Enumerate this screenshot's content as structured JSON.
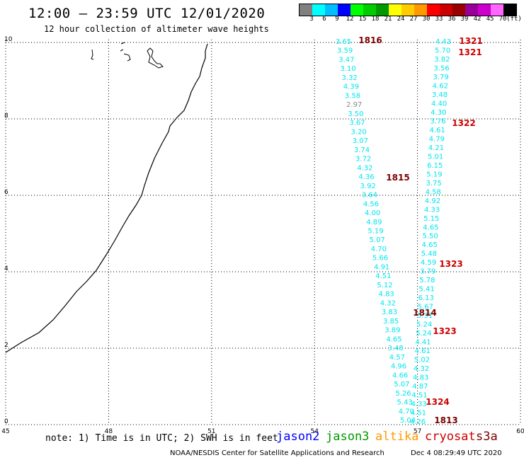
{
  "header": {
    "title": "12:00 — 23:59 UTC 12/01/2020",
    "subtitle": "12 hour collection of altimeter wave heights"
  },
  "legend": {
    "unit": "(ft)",
    "colors": [
      "#808080",
      "#00ffff",
      "#00bfff",
      "#0000ff",
      "#00ff00",
      "#00cc00",
      "#009900",
      "#ffff00",
      "#ffcc00",
      "#ff9900",
      "#ff0000",
      "#cc0000",
      "#990000",
      "#990099",
      "#cc00cc",
      "#ff66ff",
      "#000000"
    ],
    "labels": [
      "3",
      "6",
      "9",
      "12",
      "15",
      "18",
      "21",
      "24",
      "27",
      "30",
      "33",
      "36",
      "39",
      "42",
      "45",
      "70"
    ]
  },
  "axes": {
    "x_ticks": [
      "45",
      "48",
      "51",
      "54",
      "57",
      "60"
    ],
    "y_ticks": [
      "0",
      "2",
      "4",
      "6",
      "8",
      "10"
    ]
  },
  "track_a": {
    "color": "#00e5ee",
    "values": [
      "3.65",
      "3.59",
      "3.47",
      "3.10",
      "3.32",
      "4.39",
      "3.58",
      "2.97",
      "3.50",
      "3.67",
      "3.20",
      "3.07",
      "3.74",
      "3.72",
      "4.32",
      "4.36",
      "3.92",
      "3.64",
      "4.56",
      "4.00",
      "4.89",
      "5.19",
      "5.07",
      "4.70",
      "5.66",
      "4.91",
      "4.51",
      "5.12",
      "4.83",
      "4.32",
      "3.83",
      "3.85",
      "3.89",
      "4.65",
      "3.48",
      "4.57",
      "4.96",
      "4.66",
      "5.07",
      "5.26",
      "5.43",
      "4.70",
      "5.04"
    ]
  },
  "track_b": {
    "color": "#00e5ee",
    "values": [
      "4.43",
      "5.70",
      "3.82",
      "3.56",
      "3.79",
      "4.62",
      "3.48",
      "4.40",
      "4.30",
      "3.76",
      "4.61",
      "4.79",
      "4.21",
      "5.01",
      "6.15",
      "5.19",
      "3.75",
      "4.58",
      "4.92",
      "4.33",
      "5.15",
      "4.65",
      "5.50",
      "4.65",
      "5.48",
      "4.59",
      "3.79",
      "5.78",
      "5.41",
      "6.13",
      "5.67",
      "5.31",
      "5.24",
      "5.24",
      "4.41",
      "4.61",
      "5.02",
      "4.32",
      "4.83",
      "4.87",
      "4.51",
      "4.33",
      "4.51",
      "4.26"
    ]
  },
  "time_labels": [
    {
      "text": "1816",
      "color": "#7a0000"
    },
    {
      "text": "1321",
      "color": "#cc0000"
    },
    {
      "text": "1321",
      "color": "#cc0000"
    },
    {
      "text": "1322",
      "color": "#cc0000"
    },
    {
      "text": "1815",
      "color": "#7a0000"
    },
    {
      "text": "1323",
      "color": "#cc0000"
    },
    {
      "text": "1814",
      "color": "#7a0000"
    },
    {
      "text": "1323",
      "color": "#cc0000"
    },
    {
      "text": "1324",
      "color": "#cc0000"
    },
    {
      "text": "1813",
      "color": "#7a0000"
    }
  ],
  "footer": {
    "note": "note: 1) Time is in UTC; 2) SWH is in feet",
    "satellites": [
      {
        "name": "jason2",
        "color": "#0000ff"
      },
      {
        "name": "jason3",
        "color": "#009900"
      },
      {
        "name": "altika",
        "color": "#ff9900"
      },
      {
        "name": "cryosat",
        "color": "#cc0000"
      },
      {
        "name": "s3a",
        "color": "#7a0000"
      }
    ],
    "credit": "NOAA/NESDIS Center for Satellite Applications and Research",
    "stamp": "Dec  4 08:29:49 UTC 2020"
  }
}
